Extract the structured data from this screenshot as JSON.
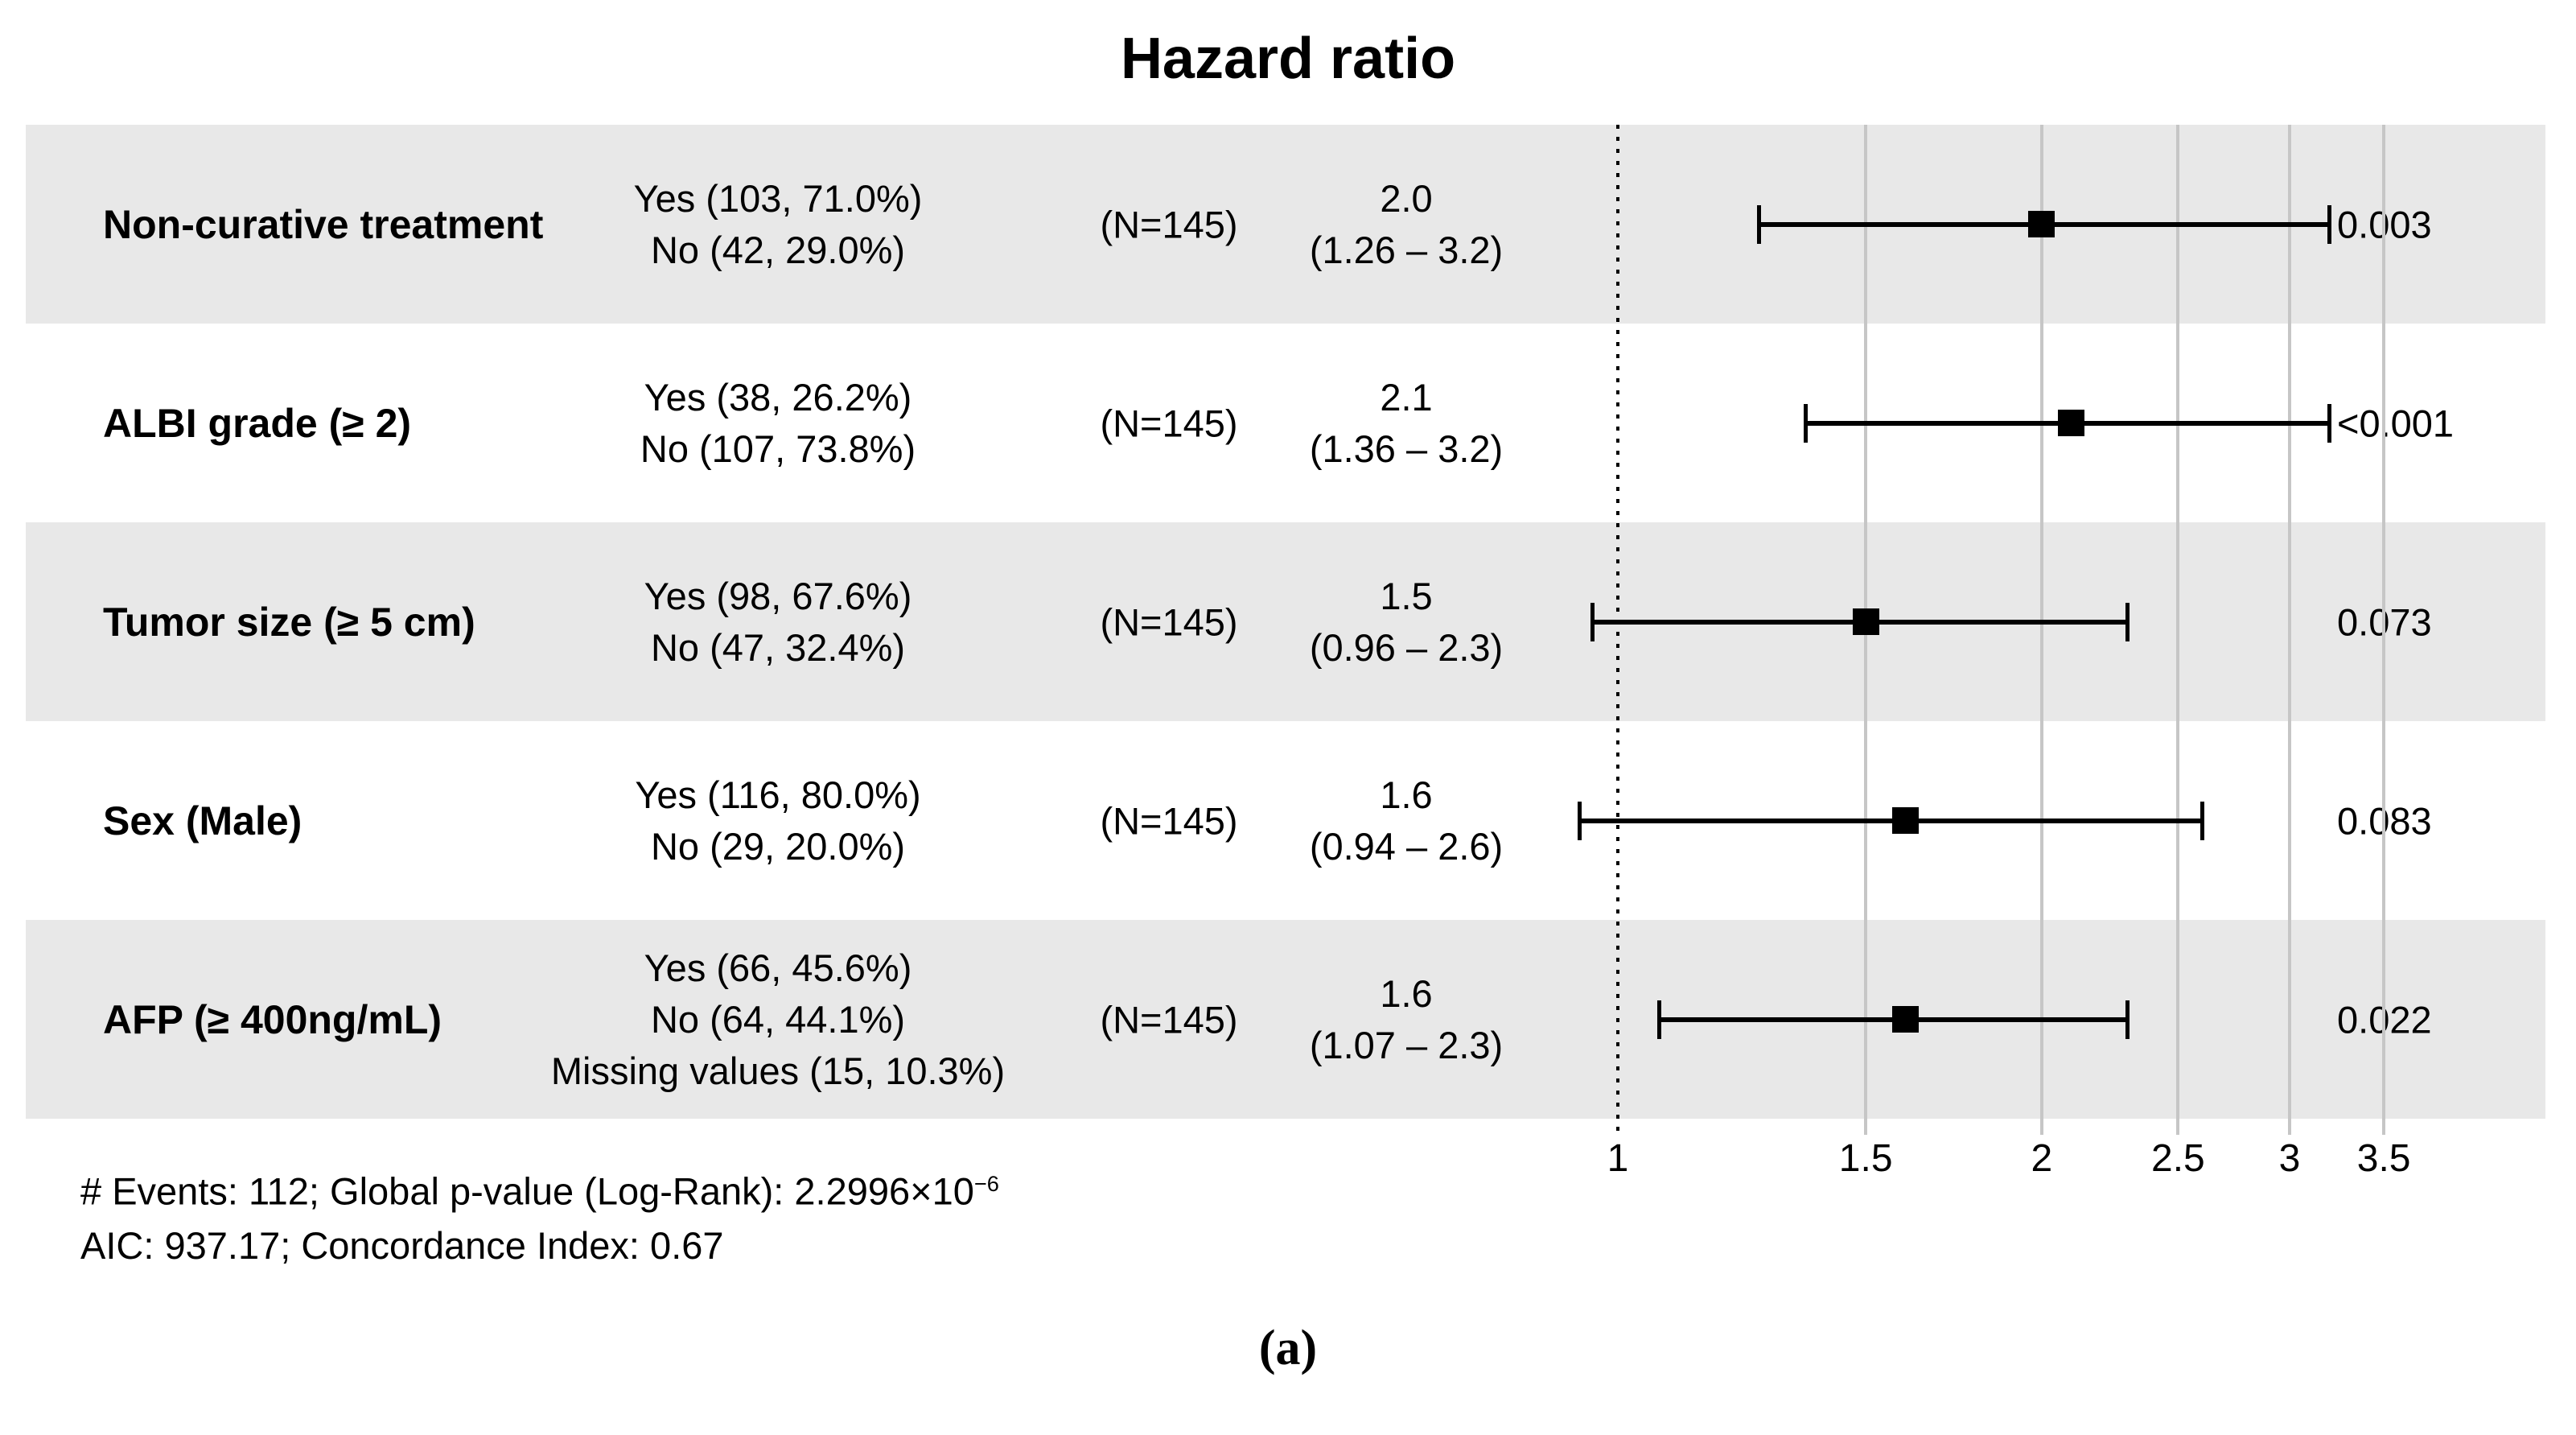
{
  "chart_data": {
    "type": "forest",
    "title": "Hazard ratio",
    "axis": {
      "scale": "log",
      "reference_line": 1,
      "xlim": [
        0.9,
        3.9
      ],
      "grid": true,
      "ticks": [
        {
          "v": 1,
          "label": "1"
        },
        {
          "v": 1.5,
          "label": "1.5"
        },
        {
          "v": 2,
          "label": "2"
        },
        {
          "v": 2.5,
          "label": "2.5"
        },
        {
          "v": 3,
          "label": "3"
        },
        {
          "v": 3.5,
          "label": "3.5"
        }
      ],
      "gridlines": [
        1.5,
        2,
        2.5,
        3,
        3.5
      ]
    },
    "rows": [
      {
        "variable": "Non-curative treatment",
        "levels": [
          "Yes (103, 71.0%)",
          "No (42, 29.0%)"
        ],
        "n_label": "(N=145)",
        "hr": 2.0,
        "ci_low": 1.26,
        "ci_high": 3.2,
        "hr_label": "2.0",
        "ci_label": "(1.26 – 3.2)",
        "p_label": "0.003"
      },
      {
        "variable": "ALBI grade (≥ 2)",
        "levels": [
          "Yes (38, 26.2%)",
          "No (107, 73.8%)"
        ],
        "n_label": "(N=145)",
        "hr": 2.1,
        "ci_low": 1.36,
        "ci_high": 3.2,
        "hr_label": "2.1",
        "ci_label": "(1.36 – 3.2)",
        "p_label": "<0.001"
      },
      {
        "variable": "Tumor size (≥ 5 cm)",
        "levels": [
          "Yes (98, 67.6%)",
          "No (47, 32.4%)"
        ],
        "n_label": "(N=145)",
        "hr": 1.5,
        "ci_low": 0.96,
        "ci_high": 2.3,
        "hr_label": "1.5",
        "ci_label": "(0.96 – 2.3)",
        "p_label": "0.073"
      },
      {
        "variable": "Sex (Male)",
        "levels": [
          "Yes (116, 80.0%)",
          "No (29, 20.0%)"
        ],
        "n_label": "(N=145)",
        "hr": 1.6,
        "ci_low": 0.94,
        "ci_high": 2.6,
        "hr_label": "1.6",
        "ci_label": "(0.94 – 2.6)",
        "p_label": "0.083"
      },
      {
        "variable": "AFP (≥ 400ng/mL)",
        "levels": [
          "Yes (66, 45.6%)",
          "No (64, 44.1%)",
          "Missing values (15, 10.3%)"
        ],
        "n_label": "(N=145)",
        "hr": 1.6,
        "ci_low": 1.07,
        "ci_high": 2.3,
        "hr_label": "1.6",
        "ci_label": "(1.07 – 2.3)",
        "p_label": "0.022"
      }
    ],
    "footnote_line1": "# Events: 112; Global p-value (Log-Rank): 2.2996×10",
    "footnote_line1_sup": "−6",
    "footnote_line2": "AIC: 937.17; Concordance Index: 0.67",
    "caption": "(a)"
  },
  "colors": {
    "band": "#e8e8e8",
    "gridline": "#c6c6c6",
    "ink": "#000000",
    "background": "#ffffff"
  }
}
